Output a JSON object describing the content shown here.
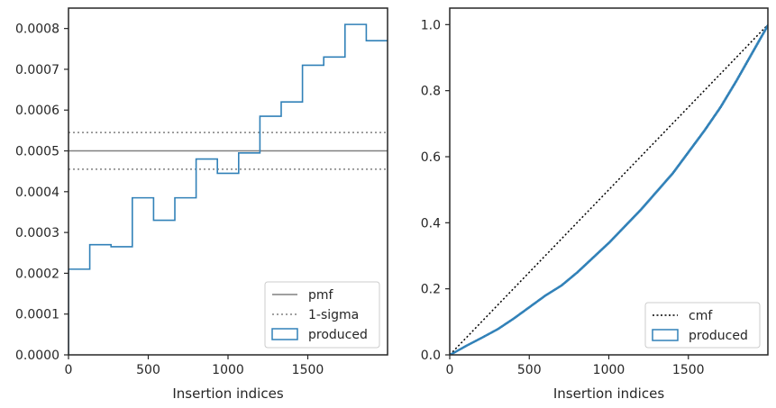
{
  "colors": {
    "produced": "#3181b8",
    "pmf": "#808080",
    "sigma": "#808080",
    "cmf": "#000000",
    "axes": "#262626"
  },
  "chart_data": [
    {
      "type": "histogram-step",
      "xlabel": "Insertion indices",
      "ylabel": "",
      "xlim": [
        0,
        2000
      ],
      "ylim": [
        0,
        0.00085
      ],
      "xticks": [
        0,
        500,
        1000,
        1500
      ],
      "xtick_labels": [
        "0",
        "500",
        "1000",
        "1500"
      ],
      "yticks": [
        0,
        0.0001,
        0.0002,
        0.0003,
        0.0004,
        0.0005,
        0.0006,
        0.0007,
        0.0008
      ],
      "ytick_labels": [
        "0.0000",
        "0.0001",
        "0.0002",
        "0.0003",
        "0.0004",
        "0.0005",
        "0.0006",
        "0.0007",
        "0.0008"
      ],
      "bin_edges": [
        0,
        133.3,
        266.7,
        400,
        533.3,
        666.7,
        800,
        933.3,
        1066.7,
        1200,
        1333.3,
        1466.7,
        1600,
        1733.3,
        1866.7,
        2000
      ],
      "produced": [
        0.00021,
        0.00027,
        0.000265,
        0.000385,
        0.00033,
        0.000385,
        0.00048,
        0.000445,
        0.000495,
        0.000585,
        0.00062,
        0.00071,
        0.00073,
        0.00081,
        0.00077
      ],
      "pmf": 0.0005,
      "sigma": [
        0.000455,
        0.000545
      ],
      "legend": [
        "pmf",
        "1-sigma",
        "produced"
      ],
      "legend_position": "lower-right",
      "grid": false
    },
    {
      "type": "line",
      "xlabel": "Insertion indices",
      "ylabel": "",
      "xlim": [
        0,
        2000
      ],
      "ylim": [
        0,
        1.05
      ],
      "xticks": [
        0,
        500,
        1000,
        1500
      ],
      "xtick_labels": [
        "0",
        "500",
        "1000",
        "1500"
      ],
      "yticks": [
        0,
        0.2,
        0.4,
        0.6,
        0.8,
        1.0
      ],
      "ytick_labels": [
        "0.0",
        "0.2",
        "0.4",
        "0.6",
        "0.8",
        "1.0"
      ],
      "cmf": {
        "x": [
          0,
          2000
        ],
        "y": [
          0,
          1
        ]
      },
      "produced": {
        "x": [
          0,
          100,
          200,
          300,
          400,
          500,
          600,
          700,
          800,
          900,
          1000,
          1100,
          1200,
          1300,
          1400,
          1500,
          1600,
          1700,
          1800,
          1900,
          2000
        ],
        "y": [
          0,
          0.027,
          0.052,
          0.078,
          0.11,
          0.145,
          0.18,
          0.21,
          0.25,
          0.295,
          0.34,
          0.39,
          0.44,
          0.495,
          0.55,
          0.615,
          0.68,
          0.75,
          0.83,
          0.915,
          1.0
        ]
      },
      "legend": [
        "cmf",
        "produced"
      ],
      "legend_position": "lower-right",
      "grid": false
    }
  ]
}
